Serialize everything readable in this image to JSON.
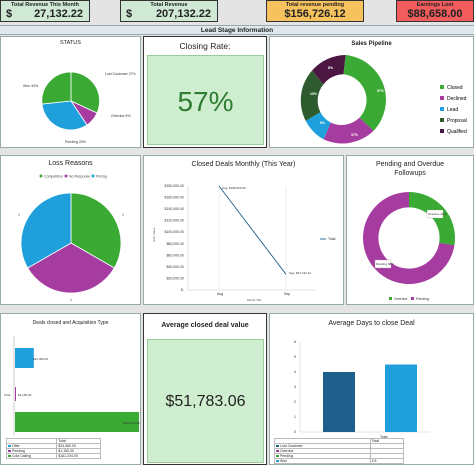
{
  "kpis": [
    {
      "title": "Total Revenue This Month",
      "currency": "$",
      "value": "27,132.22",
      "bg": "#cfe9d5"
    },
    {
      "title": "Total Revenue",
      "currency": "$",
      "value": "207,132.22",
      "bg": "#cfe9d5"
    },
    {
      "title": "Total revenue pending",
      "value": "$156,726.12",
      "bg": "#f6c25d"
    },
    {
      "title": "Earnings Lost",
      "value": "$88,658.00",
      "bg": "#f25c5c"
    }
  ],
  "banner": "Lead Stage Information",
  "status": {
    "title": "STATUS",
    "labels": [
      "Lost Customer 27%",
      "Overdue 9%",
      "Pending 20%",
      "Won 44%"
    ]
  },
  "closing_rate": {
    "title": "Closing Rate:",
    "value": "57%"
  },
  "sales_pipeline": {
    "title": "Sales Pipeline",
    "segments": [
      "57%",
      "37%",
      "8%",
      "10%",
      "8%"
    ],
    "legend": [
      "Closed",
      "Declined",
      "Lead",
      "Proposal",
      "Qualified"
    ]
  },
  "loss_reasons": {
    "title": "Loss Reasons",
    "legend": [
      "Competition",
      "No Response",
      "Pricing"
    ],
    "labels": [
      "1",
      "1",
      "1"
    ]
  },
  "closed_deals": {
    "title": "Closed Deals Monthly (This Year)",
    "yticks": [
      "$180,000.00",
      "$160,000.00",
      "$140,000.00",
      "$120,000.00",
      "$100,000.00",
      "$80,000.00",
      "$60,000.00",
      "$40,000.00",
      "$20,000.00",
      "$-"
    ],
    "xticks": [
      "Aug",
      "Sep"
    ],
    "ylabel": "Sum Value",
    "xlabel": "Month Title",
    "legend": "Total",
    "point_labels": [
      "Aug, $180,000.00",
      "Sep, $27,132.22"
    ]
  },
  "pending_overdue": {
    "title_l1": "Pending and Overdue",
    "title_l2": "Followups",
    "labels": [
      "Overdue 32%",
      "Pending 68%"
    ],
    "legend": [
      "Overdue",
      "Pending"
    ]
  },
  "deals_acq": {
    "title": "Deals closed and Acquisition Type",
    "bar_labels": [
      "$24,460.00",
      "$1,150.00",
      "$161,234.00"
    ],
    "axis_label": "Total",
    "table_header": "Total",
    "table_rows": [
      [
        "Offer",
        "$24,460.00"
      ],
      [
        "Pending",
        "$1,150.00"
      ],
      [
        "Cold Calling",
        "$161,234.00"
      ]
    ]
  },
  "avg_deal": {
    "title": "Average closed deal value",
    "value": "$51,783.06"
  },
  "avg_days": {
    "title": "Average Days to close Deal",
    "yticks": [
      "6",
      "5",
      "4",
      "3",
      "2",
      "1",
      "0"
    ],
    "xlabel": "Total",
    "table_header": "Total",
    "table_rows": [
      [
        "Lost Customer",
        ""
      ],
      [
        "Overdue",
        ""
      ],
      [
        "Pending",
        ""
      ],
      [
        "Won",
        "4.5"
      ]
    ]
  },
  "chart_data": [
    {
      "type": "pie",
      "title": "STATUS",
      "categories": [
        "Lost Customer",
        "Overdue",
        "Pending",
        "Won"
      ],
      "values": [
        27,
        9,
        20,
        44
      ],
      "colors": [
        "#3aaa35",
        "#a63ca0",
        "#1fa0dc",
        "#3aaa35"
      ]
    },
    {
      "type": "pie",
      "title": "Sales Pipeline",
      "categories": [
        "Closed",
        "Declined",
        "Lead",
        "Proposal",
        "Qualified"
      ],
      "values": [
        57,
        37,
        8,
        10,
        8
      ],
      "colors": [
        "#3aaa35",
        "#a63ca0",
        "#1fa0dc",
        "#2e5b2e",
        "#4b1742"
      ]
    },
    {
      "type": "pie",
      "title": "Loss Reasons",
      "categories": [
        "Competition",
        "No Response",
        "Pricing"
      ],
      "values": [
        1,
        1,
        1
      ],
      "colors": [
        "#3aaa35",
        "#a63ca0",
        "#1fa0dc"
      ]
    },
    {
      "type": "line",
      "title": "Closed Deals Monthly (This Year)",
      "x": [
        "Aug",
        "Sep"
      ],
      "series": [
        {
          "name": "Total",
          "values": [
            180000,
            27132.22
          ]
        }
      ],
      "ylim": [
        0,
        180000
      ],
      "xlabel": "Month Title",
      "ylabel": "Sum Value"
    },
    {
      "type": "pie",
      "title": "Pending and Overdue Followups",
      "categories": [
        "Overdue",
        "Pending"
      ],
      "values": [
        32,
        68
      ],
      "colors": [
        "#3aaa35",
        "#a63ca0"
      ]
    },
    {
      "type": "bar",
      "title": "Deals closed and Acquisition Type",
      "categories": [
        "Offer",
        "Pending",
        "Cold Calling"
      ],
      "values": [
        24460,
        1150,
        161234
      ],
      "colors": [
        "#1fa0dc",
        "#a63ca0",
        "#3aaa35"
      ]
    },
    {
      "type": "bar",
      "title": "Average Days to close Deal",
      "categories": [
        "Lost Customer",
        "Won"
      ],
      "values": [
        4,
        4.5
      ],
      "ylim": [
        0,
        6
      ],
      "colors": [
        "#1f5f8b",
        "#1fa0dc"
      ]
    }
  ]
}
